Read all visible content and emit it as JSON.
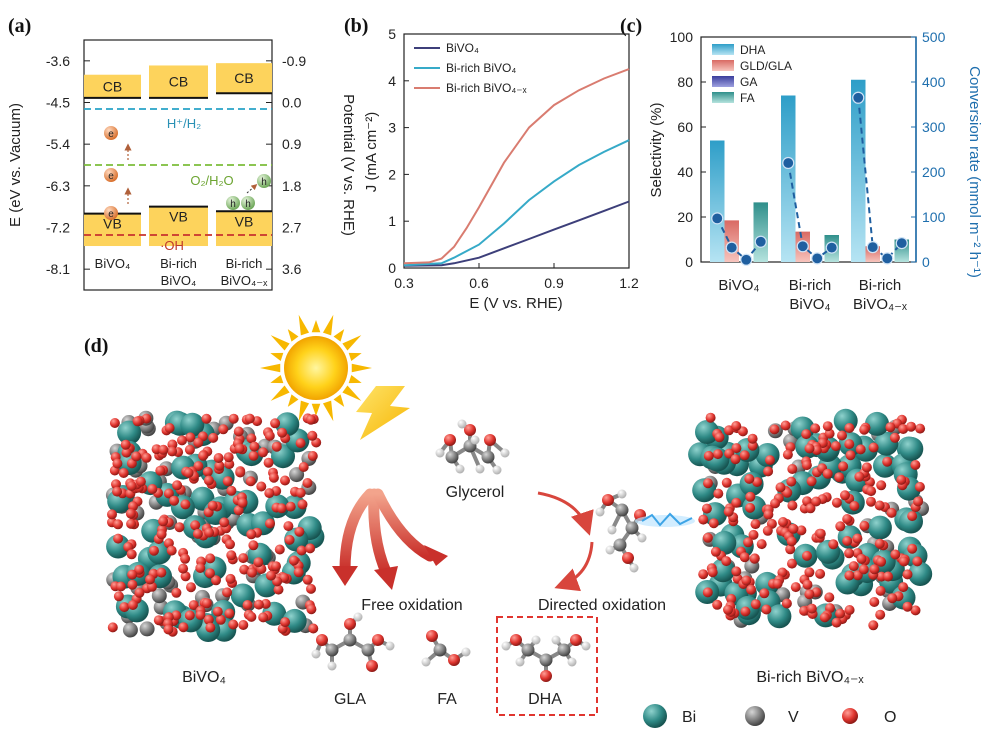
{
  "panel_labels": [
    "(a)",
    "(b)",
    "(c)",
    "(d)"
  ],
  "colors": {
    "band": "#fdd35c",
    "blue_dash": "#27a2c8",
    "green_dash": "#7cbd3a",
    "red_dash": "#c8332f",
    "line_bivo4": "#3d3f7a",
    "line_birich": "#36aac8",
    "line_birichx": "#d97c70",
    "dha": "#3aaed2",
    "gld": "#e2847a",
    "ga": "#4b4faa",
    "fa": "#57b2ae",
    "conv": "#1f5fa0",
    "bi": "#2f8a86",
    "v": "#7f7f7f",
    "o": "#e0352f"
  },
  "panel_a": {
    "left_axis_label": "E (eV vs. Vacuum)",
    "right_axis_label": "Potential (V vs. RHE)",
    "left_ticks": [
      "-3.6",
      "-4.5",
      "-5.4",
      "-6.3",
      "-7.2",
      "-8.1"
    ],
    "right_ticks": [
      "-0.9",
      "0.0",
      "0.9",
      "1.8",
      "2.7",
      "3.6"
    ],
    "cb": "CB",
    "vb": "VB",
    "h_label": "H⁺/H₂",
    "o_label": "O₂/H₂O",
    "oh_label": "·OH",
    "e": "e",
    "h": "h",
    "samples": [
      {
        "line1": "BiVO₄",
        "line2": "",
        "cb_top": -3.9,
        "cb_bottom": -4.4,
        "vb_top": -6.9,
        "vb_bottom": -7.6
      },
      {
        "line1": "Bi-rich",
        "line2": "BiVO₄",
        "cb_top": -3.7,
        "cb_bottom": -4.4,
        "vb_top": -6.75,
        "vb_bottom": -7.6
      },
      {
        "line1": "Bi-rich",
        "line2": "BiVO₄₋ₓ",
        "cb_top": -3.65,
        "cb_bottom": -4.3,
        "vb_top": -6.85,
        "vb_bottom": -7.6
      }
    ]
  },
  "chart_data": [
    {
      "type": "line",
      "xlabel": "E (V vs. RHE)",
      "ylabel": "J (mA cm⁻²)",
      "xlim": [
        0.3,
        1.2
      ],
      "ylim": [
        0,
        5
      ],
      "xticks": [
        "0.3",
        "0.6",
        "0.9",
        "1.2"
      ],
      "yticks": [
        "0",
        "1",
        "2",
        "3",
        "4",
        "5"
      ],
      "legend": "top-left",
      "series": [
        {
          "name": "BiVO₄",
          "x": [
            0.3,
            0.45,
            0.5,
            0.6,
            0.7,
            0.8,
            0.9,
            1.0,
            1.1,
            1.2
          ],
          "y": [
            0.05,
            0.06,
            0.1,
            0.22,
            0.42,
            0.62,
            0.82,
            1.02,
            1.22,
            1.42
          ]
        },
        {
          "name": "Bi-rich BiVO₄",
          "x": [
            0.3,
            0.45,
            0.5,
            0.6,
            0.7,
            0.8,
            0.9,
            1.0,
            1.1,
            1.2
          ],
          "y": [
            0.06,
            0.1,
            0.22,
            0.5,
            0.95,
            1.45,
            1.85,
            2.2,
            2.48,
            2.73
          ]
        },
        {
          "name": "Bi-rich BiVO₄₋ₓ",
          "x": [
            0.3,
            0.4,
            0.45,
            0.5,
            0.55,
            0.6,
            0.7,
            0.8,
            0.9,
            1.0,
            1.1,
            1.2
          ],
          "y": [
            0.1,
            0.12,
            0.2,
            0.45,
            0.85,
            1.3,
            2.25,
            3.0,
            3.48,
            3.8,
            4.05,
            4.25
          ]
        }
      ]
    },
    {
      "type": "bar",
      "categories": [
        "BiVO₄",
        "Bi-rich BiVO₄",
        "Bi-rich BiVO₄₋ₓ"
      ],
      "ylabel": "Selectivity (%)",
      "y2label": "Conversion rate (mmol m⁻² h⁻¹)",
      "ylim": [
        0,
        100
      ],
      "y2lim": [
        0,
        500
      ],
      "yticks": [
        "0",
        "20",
        "40",
        "60",
        "80",
        "100"
      ],
      "y2ticks": [
        "0",
        "100",
        "200",
        "300",
        "400",
        "500"
      ],
      "legend": "top-left",
      "series": [
        {
          "name": "DHA",
          "values": [
            54,
            74,
            81
          ]
        },
        {
          "name": "GLD/GLA",
          "values": [
            18.5,
            13.5,
            7
          ]
        },
        {
          "name": "GA",
          "values": [
            0,
            0,
            0
          ]
        },
        {
          "name": "FA",
          "values": [
            26.5,
            12,
            10
          ]
        }
      ],
      "conversion": [
        [
          97,
          32,
          5,
          45
        ],
        [
          220,
          35,
          8,
          32
        ],
        [
          365,
          33,
          8,
          42
        ]
      ]
    }
  ],
  "panel_d": {
    "glycerol": "Glycerol",
    "free": "Free oxidation",
    "directed": "Directed oxidation",
    "left_crystal": "BiVO₄",
    "right_crystal": "Bi-rich BiVO₄₋ₓ",
    "products": [
      "GLA",
      "FA",
      "DHA"
    ],
    "legend": [
      "Bi",
      "V",
      "O"
    ]
  }
}
